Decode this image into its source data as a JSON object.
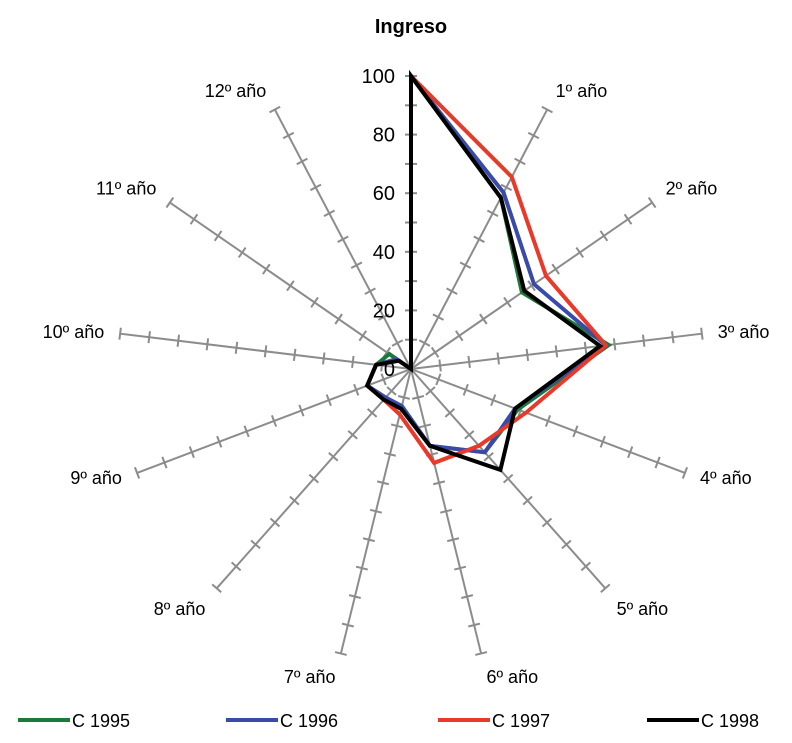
{
  "chart_data": {
    "type": "radar",
    "title": "Ingreso",
    "categories": [
      "",
      "1º año",
      "2º año",
      "3º año",
      "4º año",
      "5º año",
      "6º año",
      "7º año",
      "8º año",
      "9º año",
      "10º año",
      "11º año",
      "12º año"
    ],
    "rlim": [
      0,
      100
    ],
    "radial_ticks": [
      "0",
      "20",
      "40",
      "60",
      "80",
      "100"
    ],
    "minor_ticks_per_axis": 10,
    "grid": false,
    "legend_position": "bottom",
    "series": [
      {
        "name": "C 1995",
        "color": "#1a7a3a",
        "values": [
          100,
          66,
          46,
          68,
          39,
          38,
          27,
          14,
          14,
          16,
          12,
          9,
          0
        ]
      },
      {
        "name": "C 1996",
        "color": "#3a4aa8",
        "values": [
          100,
          68,
          51,
          67,
          38,
          38,
          27,
          13,
          13,
          16,
          12,
          6,
          0
        ]
      },
      {
        "name": "C 1997",
        "color": "#e8392a",
        "values": [
          100,
          74,
          56,
          67,
          42,
          35,
          33,
          16,
          14,
          16,
          12,
          5,
          0
        ]
      },
      {
        "name": "C 1998",
        "color": "#000000",
        "values": [
          100,
          66,
          47,
          65,
          38,
          46,
          27,
          14,
          14,
          16,
          12,
          5,
          0
        ]
      }
    ]
  }
}
